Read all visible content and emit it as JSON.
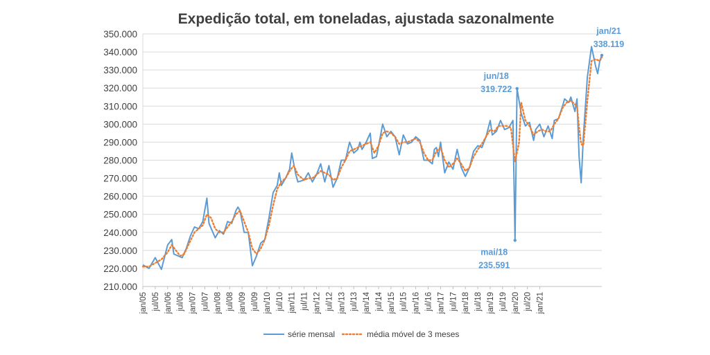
{
  "chart_data": {
    "type": "line",
    "title": "Expedição total, em toneladas, ajustada sazonalmente",
    "xlabel": "",
    "ylabel": "",
    "ylim": [
      210000,
      350000
    ],
    "yticks": [
      "210.000",
      "220.000",
      "230.000",
      "240.000",
      "250.000",
      "260.000",
      "270.000",
      "280.000",
      "290.000",
      "300.000",
      "310.000",
      "320.000",
      "330.000",
      "340.000",
      "350.000"
    ],
    "x_tick_labels": [
      "jan/05",
      "jul/05",
      "jan/06",
      "jul/06",
      "jan/07",
      "jul/07",
      "jan/08",
      "jul/08",
      "jan/09",
      "jul/09",
      "jan/10",
      "jul/10",
      "jan/11",
      "jul/11",
      "jan/12",
      "jul/12",
      "jan/13",
      "jul/13",
      "jan/14",
      "jul/14",
      "jan/15",
      "jul/15",
      "jan/16",
      "jul/16",
      "jan/17",
      "jul/17",
      "jan/18",
      "jul/18",
      "jan/19",
      "jul/19",
      "jan/20",
      "jul/20",
      "jan/21"
    ],
    "series_keypoints_note": "",
    "series": [
      {
        "name": "série mensal",
        "color": "#5B9BD5",
        "style": "solid",
        "keypoints": [
          [
            0,
            222000
          ],
          [
            3,
            220000
          ],
          [
            6,
            226000
          ],
          [
            9,
            219500
          ],
          [
            12,
            233000
          ],
          [
            14,
            236000
          ],
          [
            15,
            228000
          ],
          [
            17,
            227000
          ],
          [
            19,
            226000
          ],
          [
            21,
            231000
          ],
          [
            23,
            238000
          ],
          [
            25,
            243000
          ],
          [
            27,
            242000
          ],
          [
            29,
            246000
          ],
          [
            31,
            259000
          ],
          [
            32,
            245000
          ],
          [
            35,
            237000
          ],
          [
            37,
            241000
          ],
          [
            39,
            239000
          ],
          [
            41,
            246000
          ],
          [
            43,
            245000
          ],
          [
            45,
            252000
          ],
          [
            46,
            254000
          ],
          [
            47,
            252000
          ],
          [
            49,
            240000
          ],
          [
            51,
            240000
          ],
          [
            53,
            221500
          ],
          [
            55,
            227000
          ],
          [
            57,
            234000
          ],
          [
            59,
            236000
          ],
          [
            61,
            248000
          ],
          [
            63,
            262000
          ],
          [
            65,
            266000
          ],
          [
            66,
            273000
          ],
          [
            67,
            266000
          ],
          [
            69,
            270000
          ],
          [
            71,
            275000
          ],
          [
            72,
            284000
          ],
          [
            74,
            272000
          ],
          [
            75,
            268000
          ],
          [
            78,
            269000
          ],
          [
            80,
            273000
          ],
          [
            82,
            268000
          ],
          [
            84,
            272000
          ],
          [
            86,
            278000
          ],
          [
            88,
            268000
          ],
          [
            90,
            277000
          ],
          [
            92,
            265000
          ],
          [
            94,
            270000
          ],
          [
            96,
            280000
          ],
          [
            98,
            280000
          ],
          [
            100,
            290000
          ],
          [
            102,
            284000
          ],
          [
            104,
            286000
          ],
          [
            105,
            290000
          ],
          [
            106,
            286000
          ],
          [
            108,
            290000
          ],
          [
            110,
            295000
          ],
          [
            111,
            281000
          ],
          [
            113,
            282000
          ],
          [
            116,
            300000
          ],
          [
            118,
            293000
          ],
          [
            120,
            296000
          ],
          [
            122,
            293000
          ],
          [
            124,
            283000
          ],
          [
            126,
            294000
          ],
          [
            128,
            289000
          ],
          [
            130,
            290000
          ],
          [
            132,
            293000
          ],
          [
            134,
            291000
          ],
          [
            136,
            280000
          ],
          [
            138,
            280000
          ],
          [
            140,
            278000
          ],
          [
            141,
            286000
          ],
          [
            142,
            287000
          ],
          [
            143,
            282000
          ],
          [
            144,
            290000
          ],
          [
            146,
            273000
          ],
          [
            148,
            279000
          ],
          [
            150,
            275000
          ],
          [
            152,
            286000
          ],
          [
            154,
            276000
          ],
          [
            156,
            271000
          ],
          [
            158,
            276000
          ],
          [
            160,
            285000
          ],
          [
            162,
            288000
          ],
          [
            164,
            287000
          ],
          [
            166,
            293000
          ],
          [
            168,
            302000
          ],
          [
            169,
            294000
          ],
          [
            171,
            296000
          ],
          [
            173,
            302000
          ],
          [
            175,
            297000
          ],
          [
            177,
            298000
          ],
          [
            179,
            302000
          ],
          [
            180,
            235591
          ],
          [
            181,
            319722
          ],
          [
            183,
            306000
          ],
          [
            185,
            299000
          ],
          [
            187,
            301000
          ],
          [
            189,
            291000
          ],
          [
            190,
            297000
          ],
          [
            192,
            300000
          ],
          [
            194,
            293000
          ],
          [
            196,
            299000
          ],
          [
            198,
            292000
          ],
          [
            199,
            302000
          ],
          [
            201,
            303000
          ],
          [
            203,
            310000
          ],
          [
            204,
            314000
          ],
          [
            206,
            312000
          ],
          [
            207,
            315000
          ],
          [
            209,
            307000
          ],
          [
            210,
            314000
          ],
          [
            211,
            282000
          ],
          [
            212,
            267500
          ],
          [
            213,
            292000
          ],
          [
            215,
            326000
          ],
          [
            217,
            343000
          ],
          [
            219,
            332000
          ],
          [
            220,
            328000
          ],
          [
            221,
            335000
          ],
          [
            222,
            338119
          ]
        ]
      },
      {
        "name": "média móvel de 3 meses",
        "color": "#ED7D31",
        "style": "dotted",
        "keypoints": [
          [
            0,
            221000
          ],
          [
            3,
            221000
          ],
          [
            6,
            223000
          ],
          [
            9,
            225000
          ],
          [
            12,
            229000
          ],
          [
            14,
            233000
          ],
          [
            16,
            230000
          ],
          [
            18,
            227000
          ],
          [
            20,
            228000
          ],
          [
            22,
            233000
          ],
          [
            25,
            240000
          ],
          [
            27,
            242000
          ],
          [
            29,
            244000
          ],
          [
            31,
            250000
          ],
          [
            33,
            248000
          ],
          [
            35,
            242000
          ],
          [
            37,
            240000
          ],
          [
            39,
            240000
          ],
          [
            41,
            243000
          ],
          [
            43,
            246000
          ],
          [
            45,
            250000
          ],
          [
            47,
            252000
          ],
          [
            49,
            246000
          ],
          [
            51,
            240000
          ],
          [
            53,
            231000
          ],
          [
            55,
            228000
          ],
          [
            57,
            231000
          ],
          [
            59,
            236000
          ],
          [
            61,
            244000
          ],
          [
            63,
            255000
          ],
          [
            65,
            264000
          ],
          [
            67,
            268000
          ],
          [
            69,
            270000
          ],
          [
            71,
            274000
          ],
          [
            73,
            277000
          ],
          [
            75,
            272000
          ],
          [
            78,
            269000
          ],
          [
            80,
            270000
          ],
          [
            82,
            270000
          ],
          [
            84,
            272000
          ],
          [
            86,
            274000
          ],
          [
            88,
            273000
          ],
          [
            90,
            272000
          ],
          [
            92,
            269000
          ],
          [
            94,
            270000
          ],
          [
            96,
            276000
          ],
          [
            98,
            280000
          ],
          [
            100,
            285000
          ],
          [
            102,
            286000
          ],
          [
            104,
            287000
          ],
          [
            106,
            288000
          ],
          [
            108,
            289000
          ],
          [
            110,
            290000
          ],
          [
            112,
            284000
          ],
          [
            114,
            288000
          ],
          [
            116,
            295000
          ],
          [
            118,
            296000
          ],
          [
            120,
            295000
          ],
          [
            122,
            293000
          ],
          [
            124,
            289000
          ],
          [
            126,
            290000
          ],
          [
            128,
            290000
          ],
          [
            130,
            291000
          ],
          [
            132,
            292000
          ],
          [
            134,
            290000
          ],
          [
            136,
            284000
          ],
          [
            138,
            280000
          ],
          [
            140,
            280000
          ],
          [
            142,
            285000
          ],
          [
            144,
            287000
          ],
          [
            146,
            280000
          ],
          [
            148,
            276000
          ],
          [
            150,
            278000
          ],
          [
            152,
            281000
          ],
          [
            154,
            278000
          ],
          [
            156,
            274000
          ],
          [
            158,
            276000
          ],
          [
            160,
            282000
          ],
          [
            162,
            286000
          ],
          [
            164,
            289000
          ],
          [
            166,
            293000
          ],
          [
            168,
            297000
          ],
          [
            170,
            296000
          ],
          [
            172,
            299000
          ],
          [
            174,
            299000
          ],
          [
            176,
            299000
          ],
          [
            178,
            298000
          ],
          [
            180,
            279000
          ],
          [
            182,
            290000
          ],
          [
            183,
            312000
          ],
          [
            185,
            302000
          ],
          [
            187,
            299000
          ],
          [
            189,
            294000
          ],
          [
            191,
            296000
          ],
          [
            193,
            297000
          ],
          [
            195,
            296000
          ],
          [
            197,
            296000
          ],
          [
            199,
            300000
          ],
          [
            201,
            303000
          ],
          [
            203,
            309000
          ],
          [
            205,
            312000
          ],
          [
            207,
            313000
          ],
          [
            209,
            311000
          ],
          [
            210,
            310000
          ],
          [
            211,
            298000
          ],
          [
            212,
            289000
          ],
          [
            213,
            288000
          ],
          [
            215,
            313000
          ],
          [
            217,
            335000
          ],
          [
            219,
            336000
          ],
          [
            221,
            335000
          ],
          [
            222,
            337000
          ]
        ]
      }
    ],
    "annotations": [
      {
        "label": "jun/18",
        "value_label": "319.722",
        "index": 181,
        "value": 319722
      },
      {
        "label": "mai/18",
        "value_label": "235.591",
        "index": 180,
        "value": 235591
      },
      {
        "label": "jan/21",
        "value_label": "338.119",
        "index": 222,
        "value": 338119
      }
    ],
    "legend": {
      "placement": "bottom",
      "items": [
        "série mensal",
        "média móvel de 3 meses"
      ]
    }
  }
}
